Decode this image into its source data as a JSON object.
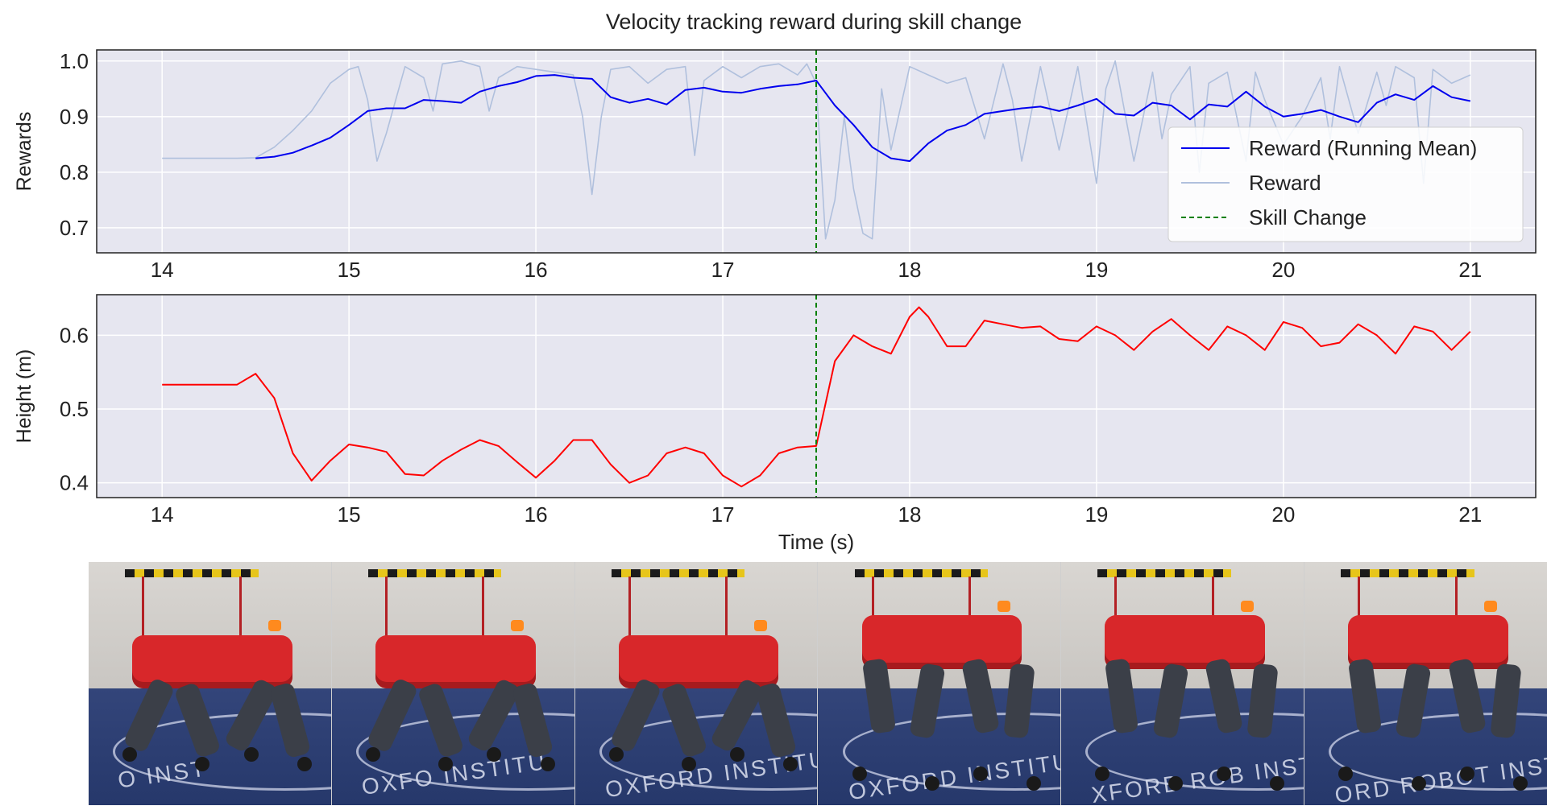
{
  "figure": {
    "title": "Velocity tracking reward during skill change"
  },
  "chart_data": [
    {
      "type": "line",
      "name": "reward-plot",
      "title": "Velocity tracking reward during skill change",
      "xlabel": "",
      "ylabel": "Rewards",
      "xlim": [
        13.65,
        21.35
      ],
      "ylim": [
        0.655,
        1.02
      ],
      "xticks": [
        14,
        15,
        16,
        17,
        18,
        19,
        20,
        21
      ],
      "yticks": [
        0.7,
        0.8,
        0.9,
        1.0
      ],
      "ytick_labels": [
        "0.7",
        "0.8",
        "0.9",
        "1.0"
      ],
      "grid": true,
      "legend_position": "center-right",
      "colors": {
        "mean": "#0000ee",
        "raw": "#b0c0dd",
        "skill": "#008000",
        "background": "#e6e6f0"
      },
      "legend": [
        "Reward (Running Mean)",
        "Reward",
        "Skill Change"
      ],
      "skill_change_x": 17.5,
      "series": [
        {
          "name": "Reward (Running Mean)",
          "x": [
            14.5,
            14.6,
            14.7,
            14.8,
            14.9,
            15.0,
            15.1,
            15.2,
            15.3,
            15.4,
            15.5,
            15.6,
            15.7,
            15.8,
            15.9,
            16.0,
            16.1,
            16.2,
            16.3,
            16.4,
            16.5,
            16.6,
            16.7,
            16.8,
            16.9,
            17.0,
            17.1,
            17.2,
            17.3,
            17.4,
            17.5,
            17.6,
            17.7,
            17.8,
            17.9,
            18.0,
            18.1,
            18.2,
            18.3,
            18.4,
            18.5,
            18.6,
            18.7,
            18.8,
            18.9,
            19.0,
            19.1,
            19.2,
            19.3,
            19.4,
            19.5,
            19.6,
            19.7,
            19.8,
            19.9,
            20.0,
            20.1,
            20.2,
            20.3,
            20.4,
            20.5,
            20.6,
            20.7,
            20.8,
            20.9,
            21.0
          ],
          "y": [
            0.825,
            0.828,
            0.835,
            0.848,
            0.862,
            0.885,
            0.91,
            0.915,
            0.915,
            0.93,
            0.928,
            0.925,
            0.945,
            0.955,
            0.962,
            0.973,
            0.975,
            0.97,
            0.968,
            0.935,
            0.925,
            0.932,
            0.922,
            0.948,
            0.952,
            0.945,
            0.943,
            0.95,
            0.955,
            0.958,
            0.965,
            0.92,
            0.885,
            0.845,
            0.825,
            0.82,
            0.852,
            0.875,
            0.885,
            0.905,
            0.91,
            0.915,
            0.918,
            0.91,
            0.92,
            0.932,
            0.905,
            0.902,
            0.925,
            0.92,
            0.895,
            0.922,
            0.918,
            0.945,
            0.918,
            0.9,
            0.905,
            0.912,
            0.9,
            0.89,
            0.925,
            0.94,
            0.93,
            0.955,
            0.935,
            0.928
          ]
        },
        {
          "name": "Reward",
          "x": [
            14.0,
            14.2,
            14.4,
            14.5,
            14.6,
            14.7,
            14.8,
            14.9,
            15.0,
            15.05,
            15.1,
            15.15,
            15.2,
            15.3,
            15.4,
            15.45,
            15.5,
            15.6,
            15.7,
            15.75,
            15.8,
            15.9,
            16.0,
            16.1,
            16.2,
            16.25,
            16.3,
            16.35,
            16.4,
            16.5,
            16.6,
            16.7,
            16.8,
            16.85,
            16.9,
            17.0,
            17.1,
            17.2,
            17.3,
            17.4,
            17.45,
            17.5,
            17.55,
            17.6,
            17.65,
            17.7,
            17.75,
            17.8,
            17.85,
            17.9,
            18.0,
            18.1,
            18.2,
            18.3,
            18.4,
            18.5,
            18.55,
            18.6,
            18.7,
            18.8,
            18.9,
            19.0,
            19.05,
            19.1,
            19.2,
            19.3,
            19.35,
            19.4,
            19.5,
            19.55,
            19.6,
            19.7,
            19.8,
            19.85,
            19.9,
            20.0,
            20.1,
            20.2,
            20.25,
            20.3,
            20.4,
            20.5,
            20.55,
            20.6,
            20.7,
            20.75,
            20.8,
            20.9,
            21.0
          ],
          "y": [
            0.825,
            0.825,
            0.825,
            0.826,
            0.845,
            0.875,
            0.91,
            0.96,
            0.985,
            0.99,
            0.93,
            0.82,
            0.87,
            0.99,
            0.97,
            0.91,
            0.995,
            1.0,
            0.99,
            0.91,
            0.97,
            0.99,
            0.985,
            0.98,
            0.975,
            0.9,
            0.76,
            0.9,
            0.985,
            0.99,
            0.96,
            0.985,
            0.99,
            0.83,
            0.965,
            0.99,
            0.97,
            0.99,
            0.995,
            0.975,
            0.995,
            0.96,
            0.68,
            0.75,
            0.9,
            0.77,
            0.69,
            0.68,
            0.95,
            0.84,
            0.99,
            0.975,
            0.96,
            0.97,
            0.86,
            0.995,
            0.93,
            0.82,
            0.99,
            0.84,
            0.99,
            0.78,
            0.95,
            1.0,
            0.82,
            0.98,
            0.86,
            0.94,
            0.99,
            0.8,
            0.96,
            0.98,
            0.82,
            0.98,
            0.93,
            0.85,
            0.9,
            0.97,
            0.86,
            0.99,
            0.87,
            0.98,
            0.92,
            0.99,
            0.97,
            0.78,
            0.985,
            0.96,
            0.975
          ]
        }
      ]
    },
    {
      "type": "line",
      "name": "height-plot",
      "title": "",
      "xlabel": "Time (s)",
      "ylabel": "Height (m)",
      "xlim": [
        13.65,
        21.35
      ],
      "ylim": [
        0.38,
        0.655
      ],
      "xticks": [
        14,
        15,
        16,
        17,
        18,
        19,
        20,
        21
      ],
      "yticks": [
        0.4,
        0.5,
        0.6
      ],
      "ytick_labels": [
        "0.4",
        "0.5",
        "0.6"
      ],
      "grid": true,
      "colors": {
        "line": "#ff0000",
        "skill": "#008000",
        "background": "#e6e6f0"
      },
      "skill_change_x": 17.5,
      "series": [
        {
          "name": "Height",
          "x": [
            14.0,
            14.2,
            14.4,
            14.5,
            14.6,
            14.7,
            14.8,
            14.9,
            15.0,
            15.1,
            15.2,
            15.3,
            15.4,
            15.5,
            15.6,
            15.7,
            15.8,
            15.9,
            16.0,
            16.1,
            16.2,
            16.3,
            16.4,
            16.5,
            16.6,
            16.7,
            16.8,
            16.9,
            17.0,
            17.1,
            17.2,
            17.3,
            17.4,
            17.5,
            17.6,
            17.7,
            17.8,
            17.9,
            18.0,
            18.05,
            18.1,
            18.2,
            18.3,
            18.4,
            18.5,
            18.6,
            18.7,
            18.8,
            18.9,
            19.0,
            19.1,
            19.2,
            19.3,
            19.4,
            19.5,
            19.6,
            19.7,
            19.8,
            19.9,
            20.0,
            20.1,
            20.2,
            20.3,
            20.4,
            20.5,
            20.6,
            20.7,
            20.8,
            20.9,
            21.0
          ],
          "y": [
            0.533,
            0.533,
            0.533,
            0.548,
            0.515,
            0.44,
            0.403,
            0.43,
            0.452,
            0.448,
            0.442,
            0.412,
            0.41,
            0.43,
            0.445,
            0.458,
            0.45,
            0.428,
            0.407,
            0.43,
            0.458,
            0.458,
            0.425,
            0.4,
            0.41,
            0.44,
            0.448,
            0.44,
            0.41,
            0.395,
            0.41,
            0.44,
            0.448,
            0.45,
            0.565,
            0.6,
            0.585,
            0.575,
            0.625,
            0.638,
            0.625,
            0.585,
            0.585,
            0.62,
            0.615,
            0.61,
            0.612,
            0.595,
            0.592,
            0.612,
            0.6,
            0.58,
            0.605,
            0.622,
            0.6,
            0.58,
            0.612,
            0.6,
            0.58,
            0.618,
            0.61,
            0.585,
            0.59,
            0.615,
            0.6,
            0.575,
            0.612,
            0.605,
            0.58,
            0.605
          ]
        }
      ]
    }
  ],
  "photos": [
    {
      "floor_text": "O   INST"
    },
    {
      "floor_text": "OXFO  INSTITU"
    },
    {
      "floor_text": "OXFORD INSTITU"
    },
    {
      "floor_text": "OXFORD INSTITUTE"
    },
    {
      "floor_text": "XFORD ROB INSTITUTE"
    },
    {
      "floor_text": "ORD ROBOT INSTITUTE"
    }
  ]
}
